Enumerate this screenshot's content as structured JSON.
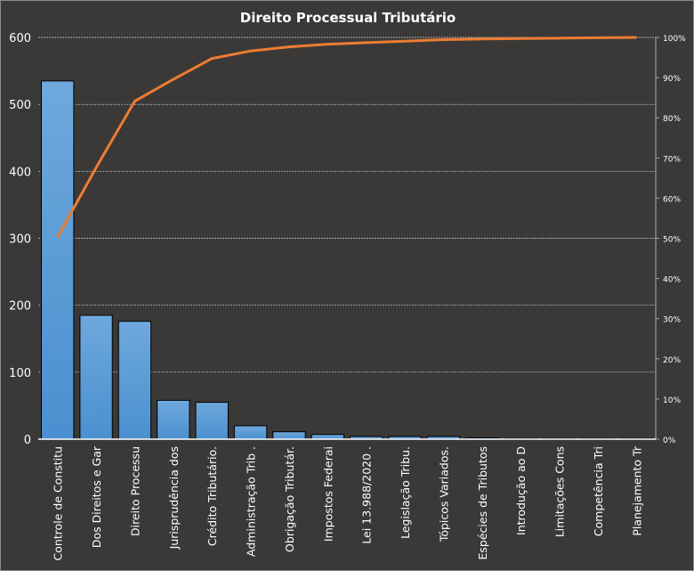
{
  "chart_data": {
    "type": "bar",
    "title": "Direito  Processual  Tributário",
    "categories": [
      "Controle de Constitu",
      "Dos Direitos e Gar",
      "Direito Processu",
      "Jurisprudência dos",
      "Crédito Tributário.",
      "Administração Trib .",
      "Obrigação Tributár.",
      "Impostos Federai",
      "Lei 13.988/2020 .",
      "Legislação Tribu.",
      "Tópicos Variados.",
      "Espécies de Tributos",
      "Introdução  ao D",
      "Limitações Cons",
      "Competência Tri",
      "Planejamento Tr"
    ],
    "values": [
      535,
      185,
      176,
      58,
      55,
      20,
      11,
      7,
      4,
      4,
      4,
      2,
      1,
      1,
      1,
      1
    ],
    "cumulative_line": {
      "name": "Cumulative %",
      "color": "#ed7d31"
    },
    "ylim": [
      0,
      600
    ],
    "yticks": [
      "0",
      "100",
      "200",
      "300",
      "400",
      "500",
      "600"
    ],
    "y2ticks": [
      "0%",
      "10%",
      "20%",
      "30%",
      "40%",
      "50%",
      "60%",
      "70%",
      "80%",
      "90%",
      "100%"
    ],
    "grid": true,
    "bar_color": "#4a90d0",
    "xlabel": "",
    "ylabel": ""
  }
}
